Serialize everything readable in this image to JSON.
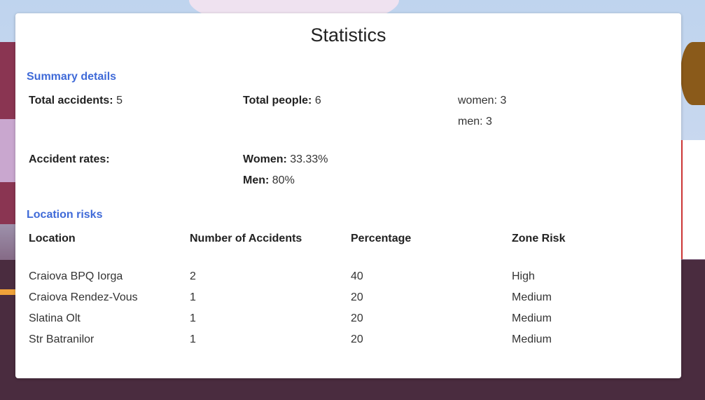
{
  "title": "Statistics",
  "summary": {
    "heading": "Summary details",
    "total_accidents_label": "Total accidents:",
    "total_accidents_value": "5",
    "total_people_label": "Total people:",
    "total_people_value": "6",
    "women_line": "women: 3",
    "men_line": "men: 3",
    "rates_label": "Accident rates:",
    "women_rate_label": "Women:",
    "women_rate_value": "33.33%",
    "men_rate_label": "Men:",
    "men_rate_value": "80%"
  },
  "locations": {
    "heading": "Location risks",
    "columns": [
      "Location",
      "Number of Accidents",
      "Percentage",
      "Zone Risk"
    ],
    "rows": [
      [
        "Craiova BPQ Iorga",
        "2",
        "40",
        "High"
      ],
      [
        "Craiova Rendez-Vous",
        "1",
        "20",
        "Medium"
      ],
      [
        "Slatina Olt",
        "1",
        "20",
        "Medium"
      ],
      [
        "Str Batranilor",
        "1",
        "20",
        "Medium"
      ]
    ]
  }
}
